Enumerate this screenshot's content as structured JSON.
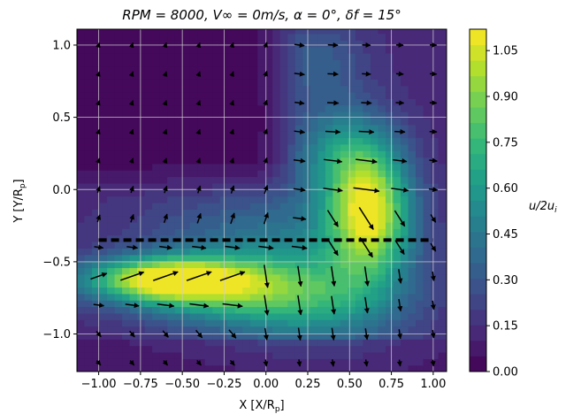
{
  "chart_data": {
    "type": "heatmap",
    "title": "RPM = 8000, V∞ = 0m/s, α = 0°, δf = 15°",
    "title_parts": {
      "rpm": "RPM = 8000,",
      "vinf": "V∞ = 0m/s,",
      "alpha": "α = 0°,",
      "delta": "δf = 15°"
    },
    "xlabel": "X [X/Rp]",
    "ylabel": "Y [Y/Rp]",
    "xlim": [
      -1.13,
      1.08
    ],
    "ylim": [
      -1.26,
      1.11
    ],
    "xticks": [
      -1.0,
      -0.75,
      -0.5,
      -0.25,
      0.0,
      0.25,
      0.5,
      0.75,
      1.0
    ],
    "xtick_labels": [
      "−1.00",
      "−0.75",
      "−0.50",
      "−0.25",
      "0.00",
      "0.25",
      "0.50",
      "0.75",
      "1.00"
    ],
    "yticks": [
      1.0,
      0.5,
      0.0,
      -0.5,
      -1.0
    ],
    "ytick_labels": [
      "1.0",
      "0.5",
      "0.0",
      "−0.5",
      "−1.0"
    ],
    "grid": true,
    "colorbar": {
      "label": "u/2ui",
      "label_main": "u/2u",
      "label_sub": "i",
      "range": [
        0.0,
        1.12
      ],
      "ticks": [
        0.0,
        0.15,
        0.3,
        0.45,
        0.6,
        0.75,
        0.9,
        1.05
      ],
      "tick_labels": [
        "0.00",
        "0.15",
        "0.30",
        "0.45",
        "0.60",
        "0.75",
        "0.90",
        "1.05"
      ],
      "colormap": "viridis",
      "levels": 22
    },
    "dashed_line": {
      "y": -0.35,
      "x_range": [
        -1.0,
        1.0
      ],
      "color": "#000000"
    },
    "field_description": "contour field of u/2ui; low over the upper-left region, a jet band near y=-0.6 peaking about 1.0 around x=-0.6, a second high region near x=0.65, y=-0.15 peaking about 1.05",
    "vector_grid": {
      "x": [
        -1.0,
        -0.8,
        -0.6,
        -0.4,
        -0.2,
        0.0,
        0.2,
        0.4,
        0.6,
        0.8,
        1.0
      ],
      "y": [
        1.0,
        0.8,
        0.6,
        0.4,
        0.2,
        0.0,
        -0.2,
        -0.4,
        -0.6,
        -0.8,
        -1.0,
        -1.2
      ]
    }
  }
}
